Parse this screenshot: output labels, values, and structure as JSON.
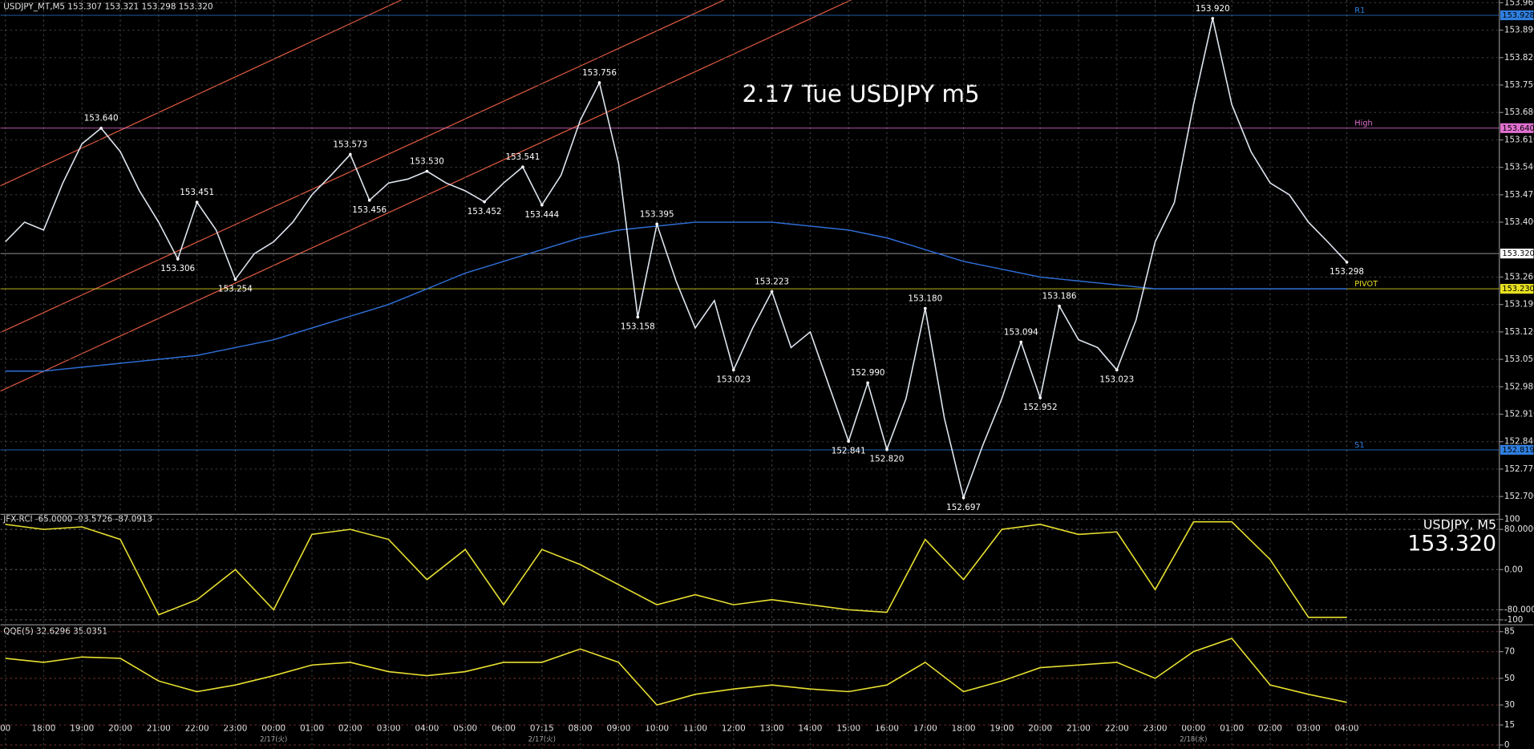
{
  "header": "USDJPY_MT,M5  153.307 153.321 153.298 153.320",
  "chart_data": [
    {
      "type": "line",
      "title": "2.17 Tue USDJPY m5",
      "categories": [
        "00",
        null,
        "18:00",
        null,
        "19:00",
        null,
        "20:00",
        null,
        "21:00",
        null,
        "22:00",
        null,
        "23:00",
        null,
        "00:00",
        null,
        "01:00",
        null,
        "02:00",
        null,
        "03:00",
        null,
        "04:00",
        null,
        "05:00",
        null,
        "06:00",
        null,
        "07:15",
        null,
        "08:00",
        null,
        "09:00",
        null,
        "10:00",
        null,
        "11:00",
        null,
        "12:00",
        null,
        "13:00",
        null,
        "14:00",
        null,
        "15:00",
        null,
        "16:00",
        null,
        "17:00",
        null,
        "18:00",
        null,
        "19:00",
        null,
        "20:00",
        null,
        "21:00",
        null,
        "22:00",
        null,
        "23:00",
        null,
        "00:00",
        null,
        "01:00",
        null,
        "02:00",
        null,
        "03:00",
        null,
        "04:00"
      ],
      "dates": [
        null,
        null,
        null,
        null,
        null,
        null,
        null,
        null,
        null,
        null,
        null,
        null,
        null,
        null,
        "2/17(火)",
        null,
        null,
        null,
        null,
        null,
        null,
        null,
        null,
        null,
        null,
        null,
        null,
        null,
        "2/17(火)",
        null,
        null,
        null,
        null,
        null,
        null,
        null,
        null,
        null,
        null,
        null,
        null,
        null,
        null,
        null,
        null,
        null,
        null,
        null,
        null,
        null,
        null,
        null,
        null,
        null,
        null,
        null,
        null,
        null,
        null,
        null,
        null,
        null,
        "2/18(水)",
        null,
        null,
        null,
        null,
        null,
        null,
        null,
        null
      ],
      "color": "#dfe6f0",
      "values": [
        153.35,
        153.4,
        153.38,
        153.5,
        153.6,
        153.64,
        153.58,
        153.48,
        153.4,
        153.306,
        153.451,
        153.38,
        153.254,
        153.32,
        153.35,
        153.4,
        153.47,
        153.52,
        153.573,
        153.456,
        153.5,
        153.51,
        153.53,
        153.5,
        153.48,
        153.452,
        153.5,
        153.541,
        153.444,
        153.52,
        153.66,
        153.756,
        153.55,
        153.158,
        153.395,
        153.25,
        153.13,
        153.2,
        153.023,
        153.13,
        153.223,
        153.08,
        153.12,
        152.98,
        152.841,
        152.99,
        152.82,
        152.95,
        153.18,
        152.9,
        152.697,
        152.83,
        152.95,
        153.094,
        152.952,
        153.186,
        153.1,
        153.08,
        153.023,
        153.15,
        153.35,
        153.45,
        153.7,
        153.92,
        153.7,
        153.58,
        153.5,
        153.47,
        153.4,
        153.35,
        153.298
      ],
      "value_labels": [
        null,
        null,
        null,
        null,
        null,
        "153.640",
        null,
        null,
        null,
        "153.306",
        "153.451",
        null,
        "153.254",
        null,
        null,
        null,
        null,
        null,
        "153.573",
        "153.456",
        null,
        null,
        "153.530",
        null,
        null,
        "153.452",
        null,
        "153.541",
        "153.444",
        null,
        null,
        "153.756",
        null,
        "153.158",
        "153.395",
        null,
        null,
        null,
        "153.023",
        null,
        "153.223",
        null,
        null,
        null,
        "152.841",
        "152.990",
        "152.820",
        null,
        "153.180",
        null,
        "152.697",
        null,
        null,
        "153.094",
        "152.952",
        "153.186",
        null,
        null,
        "153.023",
        null,
        null,
        null,
        null,
        "153.920",
        null,
        null,
        null,
        null,
        null,
        null,
        "153.298"
      ],
      "ma": {
        "color": "#2f6fd8",
        "values": [
          153.02,
          153.02,
          153.02,
          153.025,
          153.03,
          153.035,
          153.04,
          153.045,
          153.05,
          153.055,
          153.06,
          153.07,
          153.08,
          153.09,
          153.1,
          153.115,
          153.13,
          153.145,
          153.16,
          153.175,
          153.19,
          153.21,
          153.23,
          153.25,
          153.27,
          153.285,
          153.3,
          153.315,
          153.33,
          153.345,
          153.36,
          153.37,
          153.38,
          153.385,
          153.39,
          153.395,
          153.4,
          153.4,
          153.4,
          153.4,
          153.4,
          153.395,
          153.39,
          153.385,
          153.38,
          153.37,
          153.36,
          153.345,
          153.33,
          153.315,
          153.3,
          153.29,
          153.28,
          153.27,
          153.26,
          153.255,
          153.25,
          153.245,
          153.24,
          153.235,
          153.23,
          153.23,
          153.23,
          153.23,
          153.23,
          153.23,
          153.23,
          153.23,
          153.23,
          153.23,
          153.23
        ]
      },
      "levels": [
        {
          "name": "R1",
          "value": 153.928,
          "label": "153.928",
          "color": "#2f7fe0"
        },
        {
          "name": "High",
          "value": 153.64,
          "label": "153.640",
          "color": "#e070d0"
        },
        {
          "name": "PIVOT",
          "value": 153.23,
          "label": "153.230",
          "color": "#e8e020"
        },
        {
          "name": "S1",
          "value": 152.819,
          "label": "152.819",
          "color": "#2f7fe0"
        }
      ],
      "last": {
        "value": 153.32,
        "label": "153.320"
      },
      "ylim": [
        152.657,
        153.967
      ],
      "yticks": [
        {
          "value": 153.96,
          "label": "153.960"
        },
        {
          "value": 153.89,
          "label": "153.890"
        },
        {
          "value": 153.82,
          "label": "153.820"
        },
        {
          "value": 153.75,
          "label": "153.750"
        },
        {
          "value": 153.68,
          "label": "153.680"
        },
        {
          "value": 153.61,
          "label": "153.610"
        },
        {
          "value": 153.54,
          "label": "153.540"
        },
        {
          "value": 153.47,
          "label": "153.470"
        },
        {
          "value": 153.4,
          "label": "153.400"
        },
        {
          "value": 153.26,
          "label": "153.260"
        },
        {
          "value": 153.19,
          "label": "153.190"
        },
        {
          "value": 153.12,
          "label": "153.120"
        },
        {
          "value": 153.05,
          "label": "153.050"
        },
        {
          "value": 152.98,
          "label": "152.980"
        },
        {
          "value": 152.91,
          "label": "152.910"
        },
        {
          "value": 152.84,
          "label": "152.840"
        },
        {
          "value": 152.77,
          "label": "152.770"
        },
        {
          "value": 152.7,
          "label": "152.700"
        }
      ],
      "grid": true
    },
    {
      "type": "line",
      "title": "JFX-RCI -65.0000 -93.5726 -87.0913",
      "symbol": "USDJPY, M5",
      "color": "#e8e030",
      "values": [
        90,
        80,
        85,
        60,
        -90,
        -60,
        0,
        -80,
        70,
        80,
        60,
        -20,
        40,
        -70,
        40,
        10,
        -30,
        -70,
        -50,
        -70,
        -60,
        -70,
        -80,
        -85,
        60,
        -20,
        80,
        90,
        70,
        75,
        -40,
        95,
        95,
        20,
        -95,
        -95
      ],
      "ylim": [
        -108,
        108
      ],
      "yticks": [
        100,
        {
          "value": 80,
          "label": "80.0000"
        },
        {
          "value": 0,
          "label": "0.00"
        },
        {
          "value": -80,
          "label": "-80.0000"
        },
        -100
      ]
    },
    {
      "type": "line",
      "title": "QQE(5) 32.6296 35.0351",
      "color": "#e8e030",
      "values": [
        65,
        62,
        66,
        65,
        48,
        40,
        45,
        52,
        60,
        62,
        55,
        52,
        55,
        62,
        62,
        72,
        62,
        30,
        38,
        42,
        45,
        42,
        40,
        45,
        62,
        40,
        48,
        58,
        60,
        62,
        50,
        70,
        80,
        45,
        38,
        32
      ],
      "ylim": [
        -3,
        89.4
      ],
      "yticks": [
        85,
        70,
        50,
        30,
        15,
        0
      ]
    }
  ]
}
